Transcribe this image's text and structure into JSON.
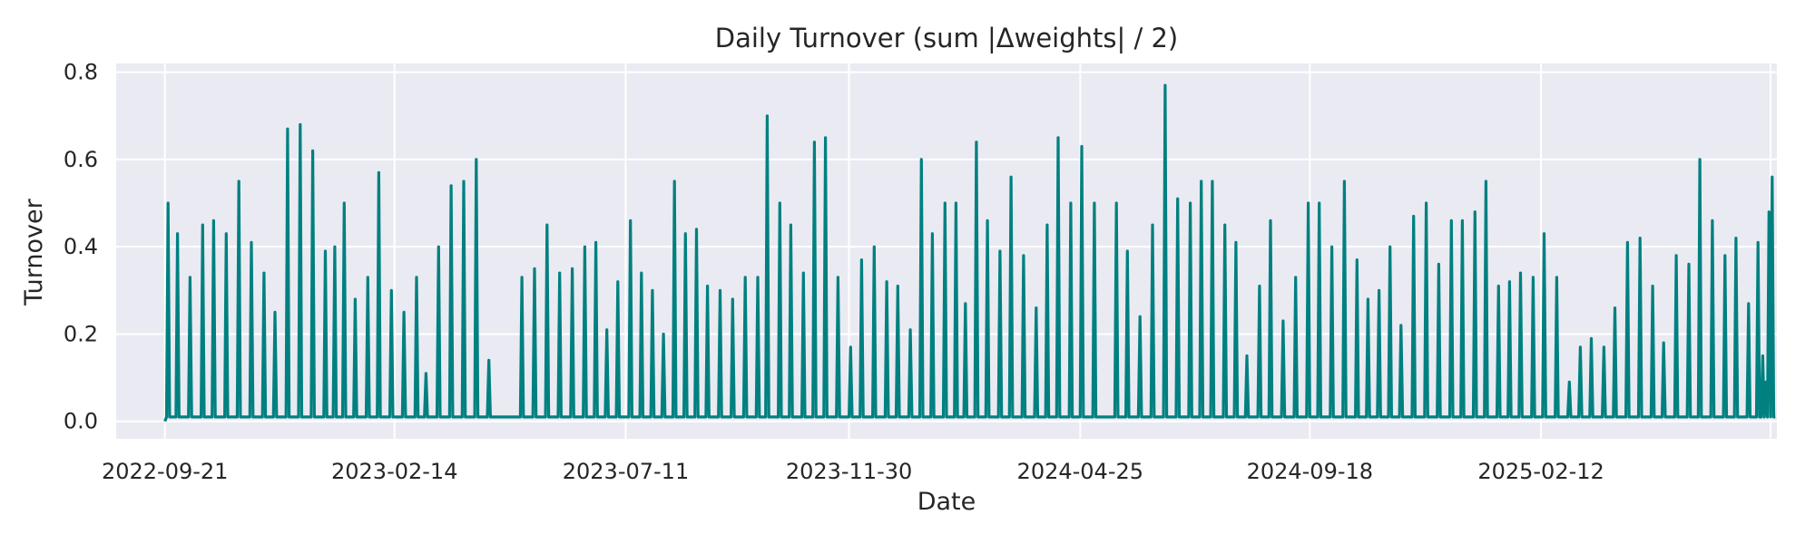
{
  "chart_data": {
    "type": "line",
    "title": "Daily Turnover (sum |Δweights| / 2)",
    "xlabel": "Date",
    "ylabel": "Turnover",
    "x_ticks": [
      "2022-09-21",
      "2023-02-14",
      "2023-07-11",
      "2023-11-30",
      "2024-04-25",
      "2024-09-18",
      "2025-02-12"
    ],
    "y_ticks": [
      "0.0",
      "0.2",
      "0.4",
      "0.6",
      "0.8"
    ],
    "xlim": [
      "2022-08-21",
      "2025-07-12"
    ],
    "ylim": [
      -0.04,
      0.82
    ],
    "grid": true,
    "line_color": "#008080",
    "background_color": "#eaeaf2",
    "grid_color": "#ffffff",
    "baseline": 0.01,
    "series": [
      {
        "spikes": [
          [
            "2022-09-23",
            0.5
          ],
          [
            "2022-09-29",
            0.43
          ],
          [
            "2022-10-07",
            0.33
          ],
          [
            "2022-10-15",
            0.45
          ],
          [
            "2022-10-22",
            0.46
          ],
          [
            "2022-10-30",
            0.43
          ],
          [
            "2022-11-07",
            0.55
          ],
          [
            "2022-11-15",
            0.41
          ],
          [
            "2022-11-23",
            0.34
          ],
          [
            "2022-11-30",
            0.25
          ],
          [
            "2022-12-08",
            0.67
          ],
          [
            "2022-12-16",
            0.68
          ],
          [
            "2022-12-24",
            0.62
          ],
          [
            "2023-01-01",
            0.39
          ],
          [
            "2023-01-07",
            0.4
          ],
          [
            "2023-01-13",
            0.5
          ],
          [
            "2023-01-20",
            0.28
          ],
          [
            "2023-01-28",
            0.33
          ],
          [
            "2023-02-04",
            0.57
          ],
          [
            "2023-02-12",
            0.3
          ],
          [
            "2023-02-20",
            0.25
          ],
          [
            "2023-02-28",
            0.33
          ],
          [
            "2023-03-06",
            0.11
          ],
          [
            "2023-03-14",
            0.4
          ],
          [
            "2023-03-22",
            0.54
          ],
          [
            "2023-03-30",
            0.55
          ],
          [
            "2023-04-07",
            0.6
          ],
          [
            "2023-04-15",
            0.14
          ],
          [
            "2023-05-06",
            0.33
          ],
          [
            "2023-05-14",
            0.35
          ],
          [
            "2023-05-22",
            0.45
          ],
          [
            "2023-05-30",
            0.34
          ],
          [
            "2023-06-07",
            0.35
          ],
          [
            "2023-06-15",
            0.4
          ],
          [
            "2023-06-22",
            0.41
          ],
          [
            "2023-06-29",
            0.21
          ],
          [
            "2023-07-06",
            0.32
          ],
          [
            "2023-07-14",
            0.46
          ],
          [
            "2023-07-21",
            0.34
          ],
          [
            "2023-07-28",
            0.3
          ],
          [
            "2023-08-04",
            0.2
          ],
          [
            "2023-08-11",
            0.55
          ],
          [
            "2023-08-18",
            0.43
          ],
          [
            "2023-08-25",
            0.44
          ],
          [
            "2023-09-01",
            0.31
          ],
          [
            "2023-09-09",
            0.3
          ],
          [
            "2023-09-17",
            0.28
          ],
          [
            "2023-09-25",
            0.33
          ],
          [
            "2023-10-03",
            0.33
          ],
          [
            "2023-10-09",
            0.7
          ],
          [
            "2023-10-17",
            0.5
          ],
          [
            "2023-10-24",
            0.45
          ],
          [
            "2023-11-01",
            0.34
          ],
          [
            "2023-11-08",
            0.64
          ],
          [
            "2023-11-15",
            0.65
          ],
          [
            "2023-11-23",
            0.33
          ],
          [
            "2023-12-01",
            0.17
          ],
          [
            "2023-12-08",
            0.37
          ],
          [
            "2023-12-16",
            0.4
          ],
          [
            "2023-12-24",
            0.32
          ],
          [
            "2023-12-31",
            0.31
          ],
          [
            "2024-01-08",
            0.21
          ],
          [
            "2024-01-15",
            0.6
          ],
          [
            "2024-01-22",
            0.43
          ],
          [
            "2024-01-30",
            0.5
          ],
          [
            "2024-02-06",
            0.5
          ],
          [
            "2024-02-12",
            0.27
          ],
          [
            "2024-02-19",
            0.64
          ],
          [
            "2024-02-26",
            0.46
          ],
          [
            "2024-03-05",
            0.39
          ],
          [
            "2024-03-12",
            0.56
          ],
          [
            "2024-03-20",
            0.38
          ],
          [
            "2024-03-28",
            0.26
          ],
          [
            "2024-04-04",
            0.45
          ],
          [
            "2024-04-11",
            0.65
          ],
          [
            "2024-04-19",
            0.5
          ],
          [
            "2024-04-26",
            0.63
          ],
          [
            "2024-05-04",
            0.5
          ],
          [
            "2024-05-18",
            0.5
          ],
          [
            "2024-05-25",
            0.39
          ],
          [
            "2024-06-02",
            0.24
          ],
          [
            "2024-06-10",
            0.45
          ],
          [
            "2024-06-18",
            0.77
          ],
          [
            "2024-06-26",
            0.51
          ],
          [
            "2024-07-04",
            0.5
          ],
          [
            "2024-07-11",
            0.55
          ],
          [
            "2024-07-18",
            0.55
          ],
          [
            "2024-07-26",
            0.45
          ],
          [
            "2024-08-02",
            0.41
          ],
          [
            "2024-08-09",
            0.15
          ],
          [
            "2024-08-17",
            0.31
          ],
          [
            "2024-08-24",
            0.46
          ],
          [
            "2024-09-01",
            0.23
          ],
          [
            "2024-09-09",
            0.33
          ],
          [
            "2024-09-17",
            0.5
          ],
          [
            "2024-09-24",
            0.5
          ],
          [
            "2024-10-02",
            0.4
          ],
          [
            "2024-10-10",
            0.55
          ],
          [
            "2024-10-18",
            0.37
          ],
          [
            "2024-10-25",
            0.28
          ],
          [
            "2024-11-01",
            0.3
          ],
          [
            "2024-11-08",
            0.4
          ],
          [
            "2024-11-15",
            0.22
          ],
          [
            "2024-11-23",
            0.47
          ],
          [
            "2024-12-01",
            0.5
          ],
          [
            "2024-12-09",
            0.36
          ],
          [
            "2024-12-17",
            0.46
          ],
          [
            "2024-12-24",
            0.46
          ],
          [
            "2025-01-01",
            0.48
          ],
          [
            "2025-01-08",
            0.55
          ],
          [
            "2025-01-16",
            0.31
          ],
          [
            "2025-01-23",
            0.32
          ],
          [
            "2025-01-30",
            0.34
          ],
          [
            "2025-02-07",
            0.33
          ],
          [
            "2025-02-14",
            0.43
          ],
          [
            "2025-02-22",
            0.33
          ],
          [
            "2025-03-02",
            0.09
          ],
          [
            "2025-03-09",
            0.17
          ],
          [
            "2025-03-16",
            0.19
          ],
          [
            "2025-03-24",
            0.17
          ],
          [
            "2025-03-31",
            0.26
          ],
          [
            "2025-04-08",
            0.41
          ],
          [
            "2025-04-16",
            0.42
          ],
          [
            "2025-04-24",
            0.31
          ],
          [
            "2025-05-01",
            0.18
          ],
          [
            "2025-05-09",
            0.38
          ],
          [
            "2025-05-17",
            0.36
          ],
          [
            "2025-05-24",
            0.6
          ],
          [
            "2025-06-01",
            0.46
          ],
          [
            "2025-06-09",
            0.38
          ],
          [
            "2025-06-16",
            0.42
          ],
          [
            "2025-06-24",
            0.27
          ],
          [
            "2025-06-30",
            0.41
          ],
          [
            "2025-07-03",
            0.15
          ],
          [
            "2025-07-05",
            0.09
          ],
          [
            "2025-07-07",
            0.48
          ],
          [
            "2025-07-09",
            0.56
          ]
        ]
      }
    ]
  }
}
